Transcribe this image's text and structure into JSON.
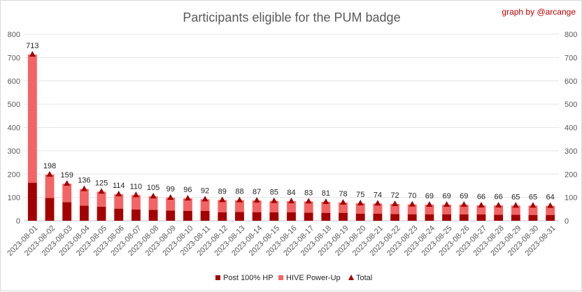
{
  "chart_data": {
    "type": "bar",
    "stacked": true,
    "title": "Participants eligible for the PUM badge",
    "credit": "graph by @arcange",
    "ylim": [
      0,
      800
    ],
    "yticks": [
      0,
      100,
      200,
      300,
      400,
      500,
      600,
      700,
      800
    ],
    "secondary_ylim": [
      0,
      800
    ],
    "grid": true,
    "legend": "bottom-center",
    "categories": [
      "2023-08-01",
      "2023-08-02",
      "2023-08-03",
      "2023-08-04",
      "2023-08-05",
      "2023-08-06",
      "2023-08-07",
      "2023-08-08",
      "2023-08-09",
      "2023-08-10",
      "2023-08-11",
      "2023-08-12",
      "2023-08-13",
      "2023-08-14",
      "2023-08-15",
      "2023-08-16",
      "2023-08-17",
      "2023-08-18",
      "2023-08-19",
      "2023-08-20",
      "2023-08-21",
      "2023-08-22",
      "2023-08-23",
      "2023-08-24",
      "2023-08-25",
      "2023-08-26",
      "2023-08-27",
      "2023-08-28",
      "2023-08-29",
      "2023-08-30",
      "2023-08-31"
    ],
    "series": [
      {
        "name": "Post 100% HP",
        "color": "#a50000",
        "values": [
          163,
          98,
          80,
          65,
          60,
          52,
          48,
          47,
          44,
          42,
          42,
          36,
          38,
          37,
          36,
          36,
          35,
          34,
          34,
          30,
          30,
          29,
          28,
          28,
          28,
          27,
          27,
          26,
          26,
          25,
          25
        ]
      },
      {
        "name": "HIVE Power-Up",
        "color": "#f46464",
        "values": [
          550,
          100,
          79,
          71,
          65,
          62,
          62,
          58,
          55,
          54,
          50,
          53,
          50,
          50,
          49,
          48,
          48,
          47,
          44,
          45,
          44,
          43,
          42,
          41,
          41,
          42,
          39,
          40,
          39,
          40,
          39
        ]
      },
      {
        "name": "Total",
        "color": "#a50000",
        "marker": "triangle",
        "values": [
          713,
          198,
          159,
          136,
          125,
          114,
          110,
          105,
          99,
          96,
          92,
          89,
          88,
          87,
          85,
          84,
          83,
          81,
          78,
          75,
          74,
          72,
          70,
          69,
          69,
          69,
          66,
          66,
          65,
          65,
          64
        ]
      }
    ]
  }
}
